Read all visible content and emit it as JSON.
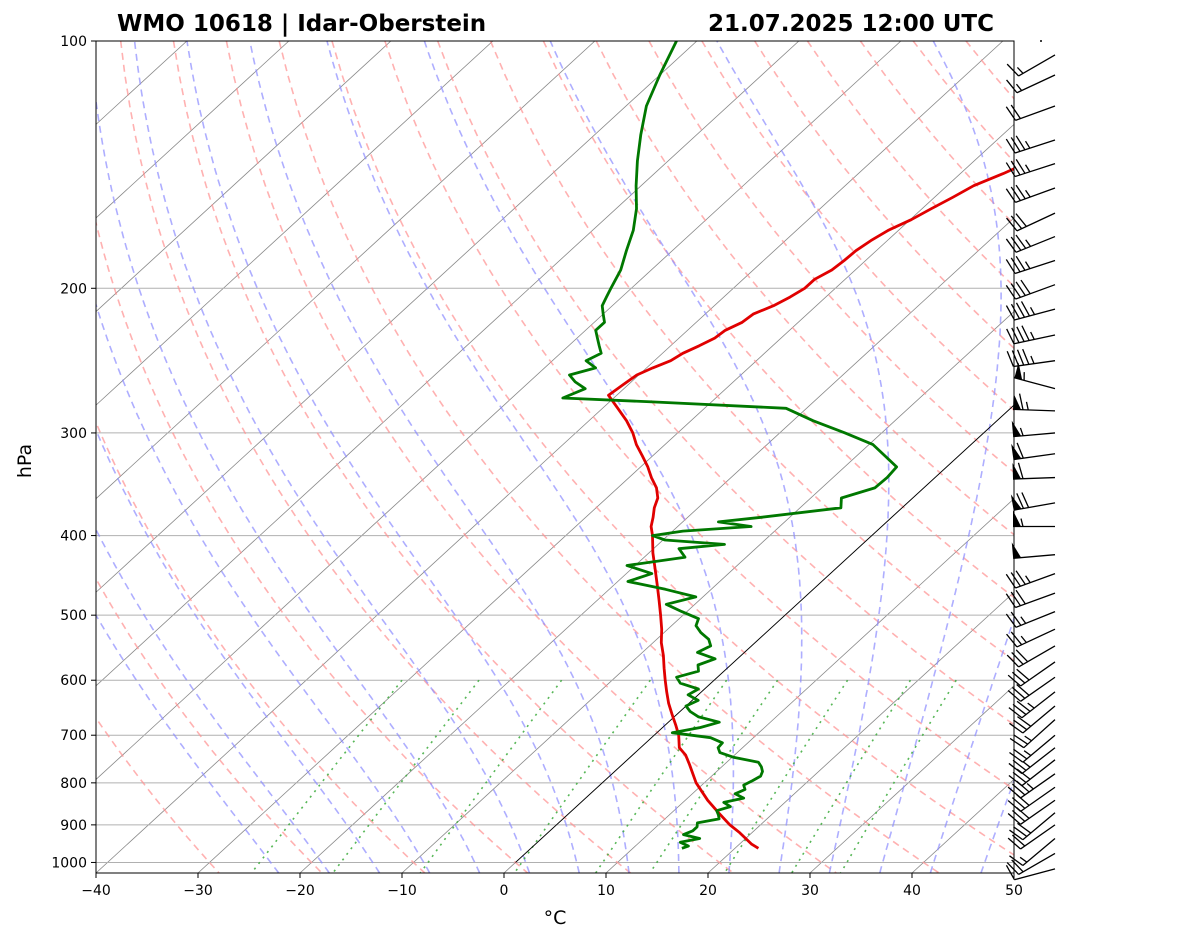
{
  "chart_data": {
    "type": "line",
    "title_left": "WMO 10618 | Idar-Oberstein",
    "title_right": "21.07.2025 12:00 UTC",
    "xlabel": "°C",
    "ylabel": "hPa",
    "xlim": [
      -40,
      50
    ],
    "ylim_hpa": [
      1030,
      100
    ],
    "y_scale": "log",
    "x_ticks": [
      "−40",
      "−30",
      "−20",
      "−10",
      "0",
      "10",
      "20",
      "30",
      "40",
      "50"
    ],
    "y_ticks": [
      "100",
      "200",
      "300",
      "400",
      "500",
      "600",
      "700",
      "800",
      "900",
      "1000"
    ],
    "grid": "horizontal isobars",
    "colors": {
      "temperature": "#e00000",
      "dewpoint": "#007800",
      "dry_adiabats": "#ff9090",
      "moist_adiabats": "#8c8cff",
      "mixing_ratio": "#3aaa3a",
      "isotherms": "#888888",
      "parcel": "#000000"
    },
    "series": [
      {
        "key": "temperature",
        "pressure": [
          961,
          950,
          920,
          900,
          870,
          840,
          800,
          760,
          740,
          725,
          700,
          680,
          660,
          640,
          620,
          600,
          580,
          560,
          540,
          520,
          500,
          480,
          460,
          440,
          420,
          400,
          390,
          380,
          370,
          360,
          350,
          340,
          330,
          320,
          310,
          300,
          290,
          280,
          270,
          262,
          255,
          250,
          245,
          240,
          235,
          230,
          225,
          220,
          215,
          210,
          205,
          200,
          195,
          190,
          185,
          180,
          175,
          170,
          165,
          160,
          155,
          150,
          145,
          140,
          135,
          130,
          125,
          122,
          120,
          115,
          110,
          105,
          100
        ],
        "values": [
          22.3,
          21.2,
          18.8,
          17.0,
          14.6,
          12.2,
          9.2,
          6.6,
          5.2,
          3.8,
          2.4,
          1.0,
          -0.5,
          -2.0,
          -3.4,
          -4.8,
          -6.2,
          -7.6,
          -9.2,
          -10.6,
          -12.2,
          -13.9,
          -15.7,
          -17.6,
          -19.6,
          -21.5,
          -22.6,
          -23.4,
          -24.3,
          -25.0,
          -26.2,
          -27.8,
          -29.3,
          -31.0,
          -32.8,
          -34.4,
          -36.3,
          -38.5,
          -40.8,
          -40.5,
          -40.2,
          -39.4,
          -38.4,
          -38.0,
          -37.2,
          -36.5,
          -36.3,
          -35.5,
          -35.3,
          -34.2,
          -33.5,
          -33.0,
          -33.0,
          -32.3,
          -32.1,
          -32.0,
          -31.6,
          -31.0,
          -29.9,
          -29.1,
          -28.2,
          -27.4,
          -25.8,
          -24.4,
          -23.6,
          -22.5,
          -22.6,
          -23.3,
          -21.9,
          -19.8,
          -17.9,
          -17.1,
          -16.2
        ]
      },
      {
        "key": "dewpoint",
        "pressure": [
          961,
          955,
          945,
          935,
          925,
          915,
          905,
          895,
          885,
          875,
          865,
          855,
          845,
          835,
          825,
          815,
          805,
          795,
          785,
          775,
          765,
          755,
          745,
          735,
          725,
          715,
          705,
          695,
          685,
          675,
          665,
          655,
          645,
          635,
          625,
          615,
          605,
          595,
          585,
          575,
          565,
          555,
          545,
          535,
          525,
          515,
          505,
          495,
          485,
          475,
          465,
          455,
          445,
          435,
          425,
          415,
          410,
          405,
          400,
          395,
          390,
          385,
          380,
          370,
          360,
          350,
          340,
          330,
          320,
          310,
          300,
          290,
          280,
          275,
          272,
          265,
          260,
          255,
          250,
          245,
          240,
          235,
          230,
          225,
          220,
          215,
          210,
          205,
          200,
          195,
          190,
          180,
          170,
          160,
          150,
          140,
          130,
          120,
          110,
          100
        ],
        "values": [
          14.8,
          15.2,
          14.0,
          15.5,
          13.5,
          14.0,
          14.0,
          13.6,
          15.3,
          14.8,
          14.2,
          15.1,
          14.0,
          15.5,
          14.2,
          14.7,
          14.1,
          14.5,
          14.8,
          14.5,
          13.9,
          13.1,
          10.2,
          8.3,
          7.6,
          7.5,
          5.8,
          1.5,
          3.7,
          5.0,
          2.4,
          1.0,
          0.0,
          0.6,
          -1.0,
          -0.6,
          -3.0,
          -4.0,
          -2.5,
          -3.2,
          -2.2,
          -4.6,
          -4.0,
          -4.9,
          -6.4,
          -7.6,
          -8.1,
          -10.5,
          -12.8,
          -10.7,
          -14.5,
          -19.0,
          -17.5,
          -20.8,
          -16.0,
          -17.5,
          -13.5,
          -19.8,
          -21.5,
          -19.0,
          -12.8,
          -16.5,
          -12.8,
          -6.0,
          -7.0,
          -4.8,
          -4.7,
          -4.9,
          -7.2,
          -9.6,
          -13.6,
          -18.0,
          -22.0,
          -35.8,
          -45.0,
          -43.8,
          -45.5,
          -46.8,
          -45.0,
          -46.7,
          -46.0,
          -47.0,
          -48.0,
          -49.0,
          -49.0,
          -50.0,
          -51.0,
          -51.5,
          -52.0,
          -52.5,
          -53.0,
          -54.5,
          -56.0,
          -58.0,
          -60.5,
          -63.0,
          -65.5,
          -68.0,
          -70.0,
          -72.0
        ]
      }
    ],
    "wind_barbs": [
      {
        "p": 1018,
        "speed_kt": 10,
        "dir_deg": 255
      },
      {
        "p": 975,
        "speed_kt": 20,
        "dir_deg": 240
      },
      {
        "p": 935,
        "speed_kt": 15,
        "dir_deg": 230
      },
      {
        "p": 900,
        "speed_kt": 20,
        "dir_deg": 235
      },
      {
        "p": 870,
        "speed_kt": 30,
        "dir_deg": 230
      },
      {
        "p": 840,
        "speed_kt": 30,
        "dir_deg": 235
      },
      {
        "p": 810,
        "speed_kt": 30,
        "dir_deg": 235
      },
      {
        "p": 780,
        "speed_kt": 35,
        "dir_deg": 235
      },
      {
        "p": 750,
        "speed_kt": 30,
        "dir_deg": 232
      },
      {
        "p": 725,
        "speed_kt": 25,
        "dir_deg": 232
      },
      {
        "p": 700,
        "speed_kt": 25,
        "dir_deg": 230
      },
      {
        "p": 670,
        "speed_kt": 25,
        "dir_deg": 228
      },
      {
        "p": 645,
        "speed_kt": 30,
        "dir_deg": 230
      },
      {
        "p": 620,
        "speed_kt": 35,
        "dir_deg": 232
      },
      {
        "p": 595,
        "speed_kt": 30,
        "dir_deg": 235
      },
      {
        "p": 570,
        "speed_kt": 30,
        "dir_deg": 235
      },
      {
        "p": 545,
        "speed_kt": 30,
        "dir_deg": 240
      },
      {
        "p": 520,
        "speed_kt": 25,
        "dir_deg": 245
      },
      {
        "p": 495,
        "speed_kt": 25,
        "dir_deg": 248
      },
      {
        "p": 470,
        "speed_kt": 30,
        "dir_deg": 250
      },
      {
        "p": 445,
        "speed_kt": 35,
        "dir_deg": 250
      },
      {
        "p": 422,
        "speed_kt": 50,
        "dir_deg": 265
      },
      {
        "p": 390,
        "speed_kt": 55,
        "dir_deg": 270
      },
      {
        "p": 365,
        "speed_kt": 70,
        "dir_deg": 260
      },
      {
        "p": 340,
        "speed_kt": 60,
        "dir_deg": 268
      },
      {
        "p": 318,
        "speed_kt": 60,
        "dir_deg": 262
      },
      {
        "p": 300,
        "speed_kt": 55,
        "dir_deg": 265
      },
      {
        "p": 282,
        "speed_kt": 65,
        "dir_deg": 272
      },
      {
        "p": 265,
        "speed_kt": 55,
        "dir_deg": 285
      },
      {
        "p": 245,
        "speed_kt": 45,
        "dir_deg": 262
      },
      {
        "p": 228,
        "speed_kt": 45,
        "dir_deg": 258
      },
      {
        "p": 212,
        "speed_kt": 45,
        "dir_deg": 255
      },
      {
        "p": 198,
        "speed_kt": 40,
        "dir_deg": 250
      },
      {
        "p": 185,
        "speed_kt": 35,
        "dir_deg": 252
      },
      {
        "p": 173,
        "speed_kt": 35,
        "dir_deg": 248
      },
      {
        "p": 162,
        "speed_kt": 30,
        "dir_deg": 245
      },
      {
        "p": 151,
        "speed_kt": 35,
        "dir_deg": 250
      },
      {
        "p": 141,
        "speed_kt": 35,
        "dir_deg": 252
      },
      {
        "p": 132,
        "speed_kt": 35,
        "dir_deg": 252
      },
      {
        "p": 120,
        "speed_kt": 20,
        "dir_deg": 250
      },
      {
        "p": 110,
        "speed_kt": 15,
        "dir_deg": 245
      },
      {
        "p": 104,
        "speed_kt": 15,
        "dir_deg": 240
      },
      {
        "p": 100,
        "speed_kt": 0,
        "dir_deg": 0
      }
    ]
  }
}
